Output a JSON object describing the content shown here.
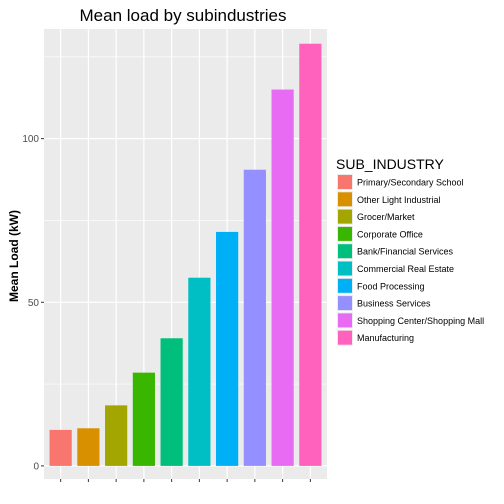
{
  "chart_data": {
    "type": "bar",
    "title": "Mean load by subindustries",
    "xlabel": "",
    "ylabel": "Mean Load (kW)",
    "categories": [
      "Primary/Secondary School",
      "Other Light Industrial",
      "Grocer/Market",
      "Corporate Office",
      "Bank/Financial Services",
      "Commercial Real Estate",
      "Food Processing",
      "Business Services",
      "Shopping Center/Shopping Mall",
      "Manufacturing"
    ],
    "values": [
      11,
      11.5,
      18.5,
      28.5,
      39,
      57.5,
      71.5,
      90.5,
      115,
      129
    ],
    "colors": [
      "#F8766D",
      "#D89000",
      "#A3A500",
      "#39B600",
      "#00BF7D",
      "#00BFC4",
      "#00B0F6",
      "#9590FF",
      "#E76BF3",
      "#FF62BC"
    ],
    "ylim": [
      -4,
      133.5
    ],
    "yticks": [
      0,
      50,
      100
    ],
    "grid": true,
    "legend": {
      "title": "SUB_INDUSTRY",
      "placement": "right"
    },
    "panel_background": "#EBEBEB",
    "gridline_color": "#FFFFFF"
  }
}
